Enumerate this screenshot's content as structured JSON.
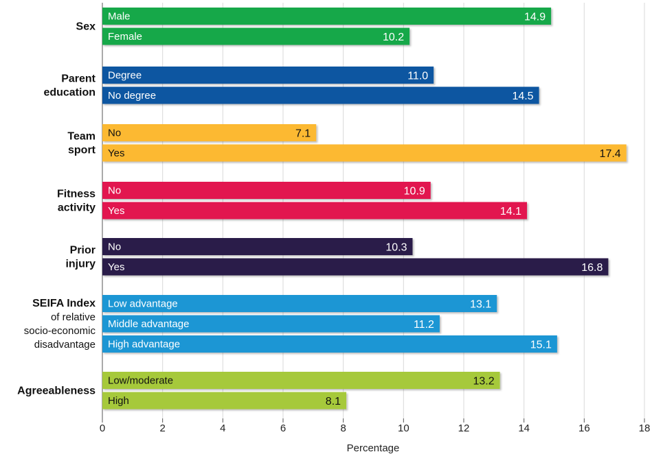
{
  "chart_data": {
    "type": "bar",
    "orientation": "horizontal",
    "xlabel": "Percentage",
    "xlim": [
      0,
      18
    ],
    "xticks": [
      "0",
      "2",
      "4",
      "6",
      "8",
      "10",
      "12",
      "14",
      "16",
      "18"
    ],
    "grid": "vertical",
    "groups": [
      {
        "label_lines": [
          {
            "text": "Sex",
            "bold": true
          }
        ],
        "color": "#19a84a",
        "text_color": "#ffffff",
        "bars": [
          {
            "label": "Male",
            "value": 14.9,
            "value_label": "14.9"
          },
          {
            "label": "Female",
            "value": 10.2,
            "value_label": "10.2"
          }
        ]
      },
      {
        "label_lines": [
          {
            "text": "Parent",
            "bold": true
          },
          {
            "text": "education",
            "bold": true
          }
        ],
        "color": "#0d57a1",
        "text_color": "#ffffff",
        "bars": [
          {
            "label": "Degree",
            "value": 11.0,
            "value_label": "11.0"
          },
          {
            "label": "No degree",
            "value": 14.5,
            "value_label": "14.5"
          }
        ]
      },
      {
        "label_lines": [
          {
            "text": "Team",
            "bold": true
          },
          {
            "text": "sport",
            "bold": true
          }
        ],
        "color": "#fcb930",
        "text_color": "#111111",
        "bars": [
          {
            "label": "No",
            "value": 7.1,
            "value_label": "7.1"
          },
          {
            "label": "Yes",
            "value": 17.4,
            "value_label": "17.4"
          }
        ]
      },
      {
        "label_lines": [
          {
            "text": "Fitness",
            "bold": true
          },
          {
            "text": "activity",
            "bold": true
          }
        ],
        "color": "#e2144f",
        "text_color": "#ffffff",
        "bars": [
          {
            "label": "No",
            "value": 10.9,
            "value_label": "10.9"
          },
          {
            "label": "Yes",
            "value": 14.1,
            "value_label": "14.1"
          }
        ]
      },
      {
        "label_lines": [
          {
            "text": "Prior",
            "bold": true
          },
          {
            "text": "injury",
            "bold": true
          }
        ],
        "color": "#2a1f4a",
        "text_color": "#ffffff",
        "bars": [
          {
            "label": "No",
            "value": 10.3,
            "value_label": "10.3"
          },
          {
            "label": "Yes",
            "value": 16.8,
            "value_label": "16.8"
          }
        ]
      },
      {
        "label_lines": [
          {
            "text": "SEIFA Index",
            "bold": true
          },
          {
            "text": "of relative",
            "bold": false
          },
          {
            "text": "socio-economic",
            "bold": false
          },
          {
            "text": "disadvantage",
            "bold": false
          }
        ],
        "color": "#1a96d4",
        "text_color": "#ffffff",
        "bars": [
          {
            "label": "Low advantage",
            "value": 13.1,
            "value_label": "13.1"
          },
          {
            "label": "Middle advantage",
            "value": 11.2,
            "value_label": "11.2"
          },
          {
            "label": "High advantage",
            "value": 15.1,
            "value_label": "15.1"
          }
        ]
      },
      {
        "label_lines": [
          {
            "text": "Agreeableness",
            "bold": true
          }
        ],
        "color": "#a6c93a",
        "text_color": "#111111",
        "bars": [
          {
            "label": "Low/moderate",
            "value": 13.2,
            "value_label": "13.2"
          },
          {
            "label": "High",
            "value": 8.1,
            "value_label": "8.1"
          }
        ]
      }
    ]
  }
}
